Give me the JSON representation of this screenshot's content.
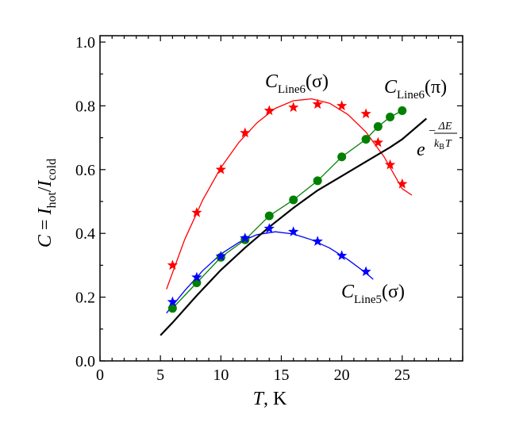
{
  "chart_data": {
    "type": "scatter",
    "xlabel": "T, K",
    "ylabel": "C = I_hot/I_cold",
    "xlim": [
      0,
      30
    ],
    "ylim": [
      0,
      1.02
    ],
    "x_ticks": [
      "0",
      "5",
      "10",
      "15",
      "20",
      "25"
    ],
    "y_ticks": [
      "0.0",
      "0.2",
      "0.4",
      "0.6",
      "0.8",
      "1.0"
    ],
    "grid": false,
    "series": [
      {
        "name": "C_Line6(σ)",
        "color": "#ff0000",
        "marker": "star",
        "x": [
          6,
          8,
          10,
          12,
          14,
          16,
          18,
          20,
          22,
          23,
          24,
          25
        ],
        "y": [
          0.3,
          0.465,
          0.6,
          0.715,
          0.785,
          0.795,
          0.805,
          0.8,
          0.775,
          0.685,
          0.615,
          0.555
        ],
        "fit_x": [
          5.5,
          7,
          8.5,
          10,
          11.5,
          13,
          14.5,
          16,
          17.5,
          19,
          20.5,
          22,
          23.5,
          25,
          25.8
        ],
        "fit_y": [
          0.225,
          0.38,
          0.505,
          0.606,
          0.686,
          0.747,
          0.792,
          0.816,
          0.822,
          0.808,
          0.773,
          0.718,
          0.64,
          0.54,
          0.52
        ]
      },
      {
        "name": "C_Line6(π)",
        "color": "#008000",
        "marker": "circle",
        "x": [
          6,
          8,
          10,
          12,
          14,
          16,
          18,
          20,
          22,
          23,
          24,
          25
        ],
        "y": [
          0.165,
          0.245,
          0.325,
          0.38,
          0.455,
          0.505,
          0.565,
          0.64,
          0.695,
          0.735,
          0.765,
          0.785
        ]
      },
      {
        "name": "C_Line5(σ)",
        "color": "#0000ff",
        "marker": "star",
        "x": [
          6,
          8,
          10,
          12,
          14,
          16,
          18,
          20,
          22
        ],
        "y": [
          0.185,
          0.262,
          0.328,
          0.385,
          0.415,
          0.405,
          0.375,
          0.33,
          0.28
        ],
        "fit_x": [
          5.5,
          7,
          8.5,
          10,
          11.5,
          13,
          14.5,
          16,
          17.5,
          19,
          20.5,
          22,
          22.6
        ],
        "fit_y": [
          0.15,
          0.22,
          0.283,
          0.335,
          0.372,
          0.396,
          0.405,
          0.398,
          0.38,
          0.354,
          0.318,
          0.276,
          0.256
        ]
      },
      {
        "name": "exp(-ΔE/k_B T)",
        "color": "#000000",
        "marker": "none",
        "x": [
          5,
          6,
          8,
          10,
          12,
          14,
          16,
          18,
          20,
          22,
          24,
          25,
          27
        ],
        "y": [
          0.08,
          0.12,
          0.205,
          0.285,
          0.355,
          0.42,
          0.48,
          0.535,
          0.58,
          0.625,
          0.67,
          0.695,
          0.76
        ]
      }
    ],
    "annotations": {
      "line6_sigma": {
        "main": "C",
        "sub": "Line6",
        "paren": "(σ)"
      },
      "line6_pi": {
        "main": "C",
        "sub": "Line6",
        "paren": "(π)"
      },
      "line5_sigma": {
        "main": "C",
        "sub": "Line5",
        "paren": "(σ)"
      },
      "exp_formula": {
        "base": "e",
        "minus": "−",
        "numerator": "ΔE",
        "denominator_k": "k",
        "denominator_sub": "B",
        "denominator_T": "T"
      }
    },
    "ylabel_parts": {
      "c": "C",
      "eq": " = ",
      "i1": "I",
      "sub1": "hot",
      "slash": "/",
      "i2": "I",
      "sub2": "cold"
    },
    "xlabel_parts": {
      "t": "T",
      "rest": ", K"
    }
  }
}
